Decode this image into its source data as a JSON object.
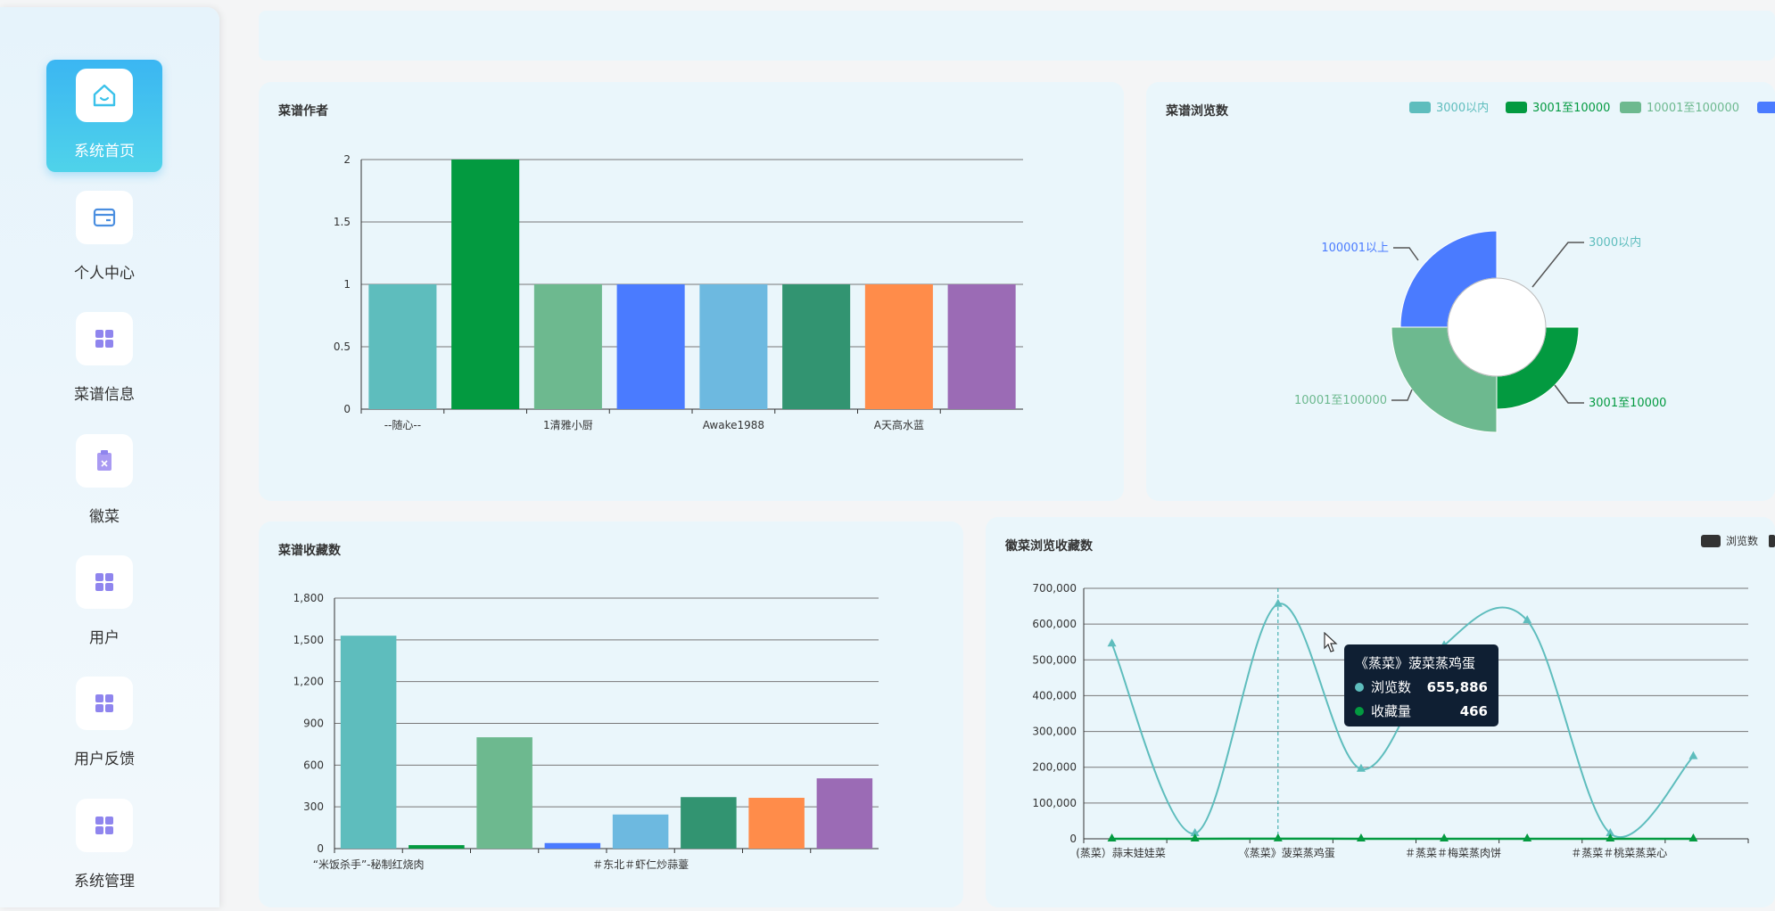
{
  "sidebar": {
    "items": [
      {
        "label": "系统首页",
        "icon": "home-icon"
      },
      {
        "label": "个人中心",
        "icon": "card-icon"
      },
      {
        "label": "菜谱信息",
        "icon": "grid-icon"
      },
      {
        "label": "徽菜",
        "icon": "clipboard-icon"
      },
      {
        "label": "用户",
        "icon": "grid-icon"
      },
      {
        "label": "用户反馈",
        "icon": "grid-icon"
      },
      {
        "label": "系统管理",
        "icon": "grid-icon"
      }
    ]
  },
  "panels": {
    "author_title": "菜谱作者",
    "views_title": "菜谱浏览数",
    "fav_title": "菜谱收藏数",
    "hui_title": "徽菜浏览收藏数"
  },
  "colors": {
    "palette": [
      "#5ebdbd",
      "#039a40",
      "#6db98f",
      "#4a7bff",
      "#6db9e0",
      "#329471",
      "#ff8c4a",
      "#9b6bb5"
    ],
    "accent": "#3bb6f2"
  },
  "chart_data": [
    {
      "type": "bar",
      "title": "菜谱作者",
      "x_tick_labels": [
        "--随心--",
        "1清雅小厨",
        "Awake1988",
        "A天高水蓝"
      ],
      "values": [
        1,
        2,
        1,
        1,
        1,
        1,
        1,
        1
      ],
      "ylim": [
        0,
        2
      ],
      "yticks": [
        "0",
        "0.5",
        "1",
        "1.5",
        "2"
      ],
      "grid": true
    },
    {
      "type": "pie",
      "title": "菜谱浏览数",
      "legend": [
        "3000以内",
        "3001至10000",
        "10001至100000",
        "100001以上"
      ],
      "legend_colors": [
        "#5ebdbd",
        "#039a40",
        "#6db98f",
        "#4a7bff"
      ],
      "legend_position": "top-right",
      "slices": [
        {
          "label": "3000以内",
          "value": 0
        },
        {
          "label": "3001至10000",
          "value": 1
        },
        {
          "label": "10001至100000",
          "value": 1
        },
        {
          "label": "100001以上",
          "value": 1
        }
      ]
    },
    {
      "type": "bar",
      "title": "菜谱收藏数",
      "x_tick_labels": [
        "“米饭杀手”-秘制红烧肉",
        "＃东北＃虾仁炒蒜薹"
      ],
      "values": [
        1530,
        25,
        800,
        40,
        245,
        370,
        365,
        505
      ],
      "ylim": [
        0,
        1800
      ],
      "yticks": [
        "0",
        "300",
        "600",
        "900",
        "1,200",
        "1,500",
        "1,800"
      ],
      "grid": true
    },
    {
      "type": "line",
      "title": "徽菜浏览收藏数",
      "x_tick_labels": [
        "(蒸菜）蒜末娃娃菜",
        "《蒸菜》菠菜蒸鸡蛋",
        "＃蒸菜＃梅菜蒸肉饼",
        "＃蒸菜＃桃菜蒸菜心"
      ],
      "ylim": [
        0,
        700000
      ],
      "yticks": [
        "0",
        "100,000",
        "200,000",
        "300,000",
        "400,000",
        "500,000",
        "600,000",
        "700,000"
      ],
      "series": [
        {
          "name": "浏览数",
          "values": [
            545000,
            15000,
            655886,
            195000,
            540000,
            610000,
            15000,
            230000
          ],
          "color": "#5ebdbd"
        },
        {
          "name": "收藏量",
          "values": [
            0,
            0,
            466,
            0,
            0,
            0,
            0,
            0
          ],
          "color": "#039a40"
        }
      ],
      "legend": [
        "浏览数"
      ],
      "legend_position": "top-right",
      "grid": true
    }
  ],
  "tooltip": {
    "title": "《蒸菜》菠菜蒸鸡蛋",
    "rows": [
      {
        "label": "浏览数",
        "value": "655,886",
        "color": "#5ebdbd"
      },
      {
        "label": "收藏量",
        "value": "466",
        "color": "#039a40"
      }
    ]
  }
}
